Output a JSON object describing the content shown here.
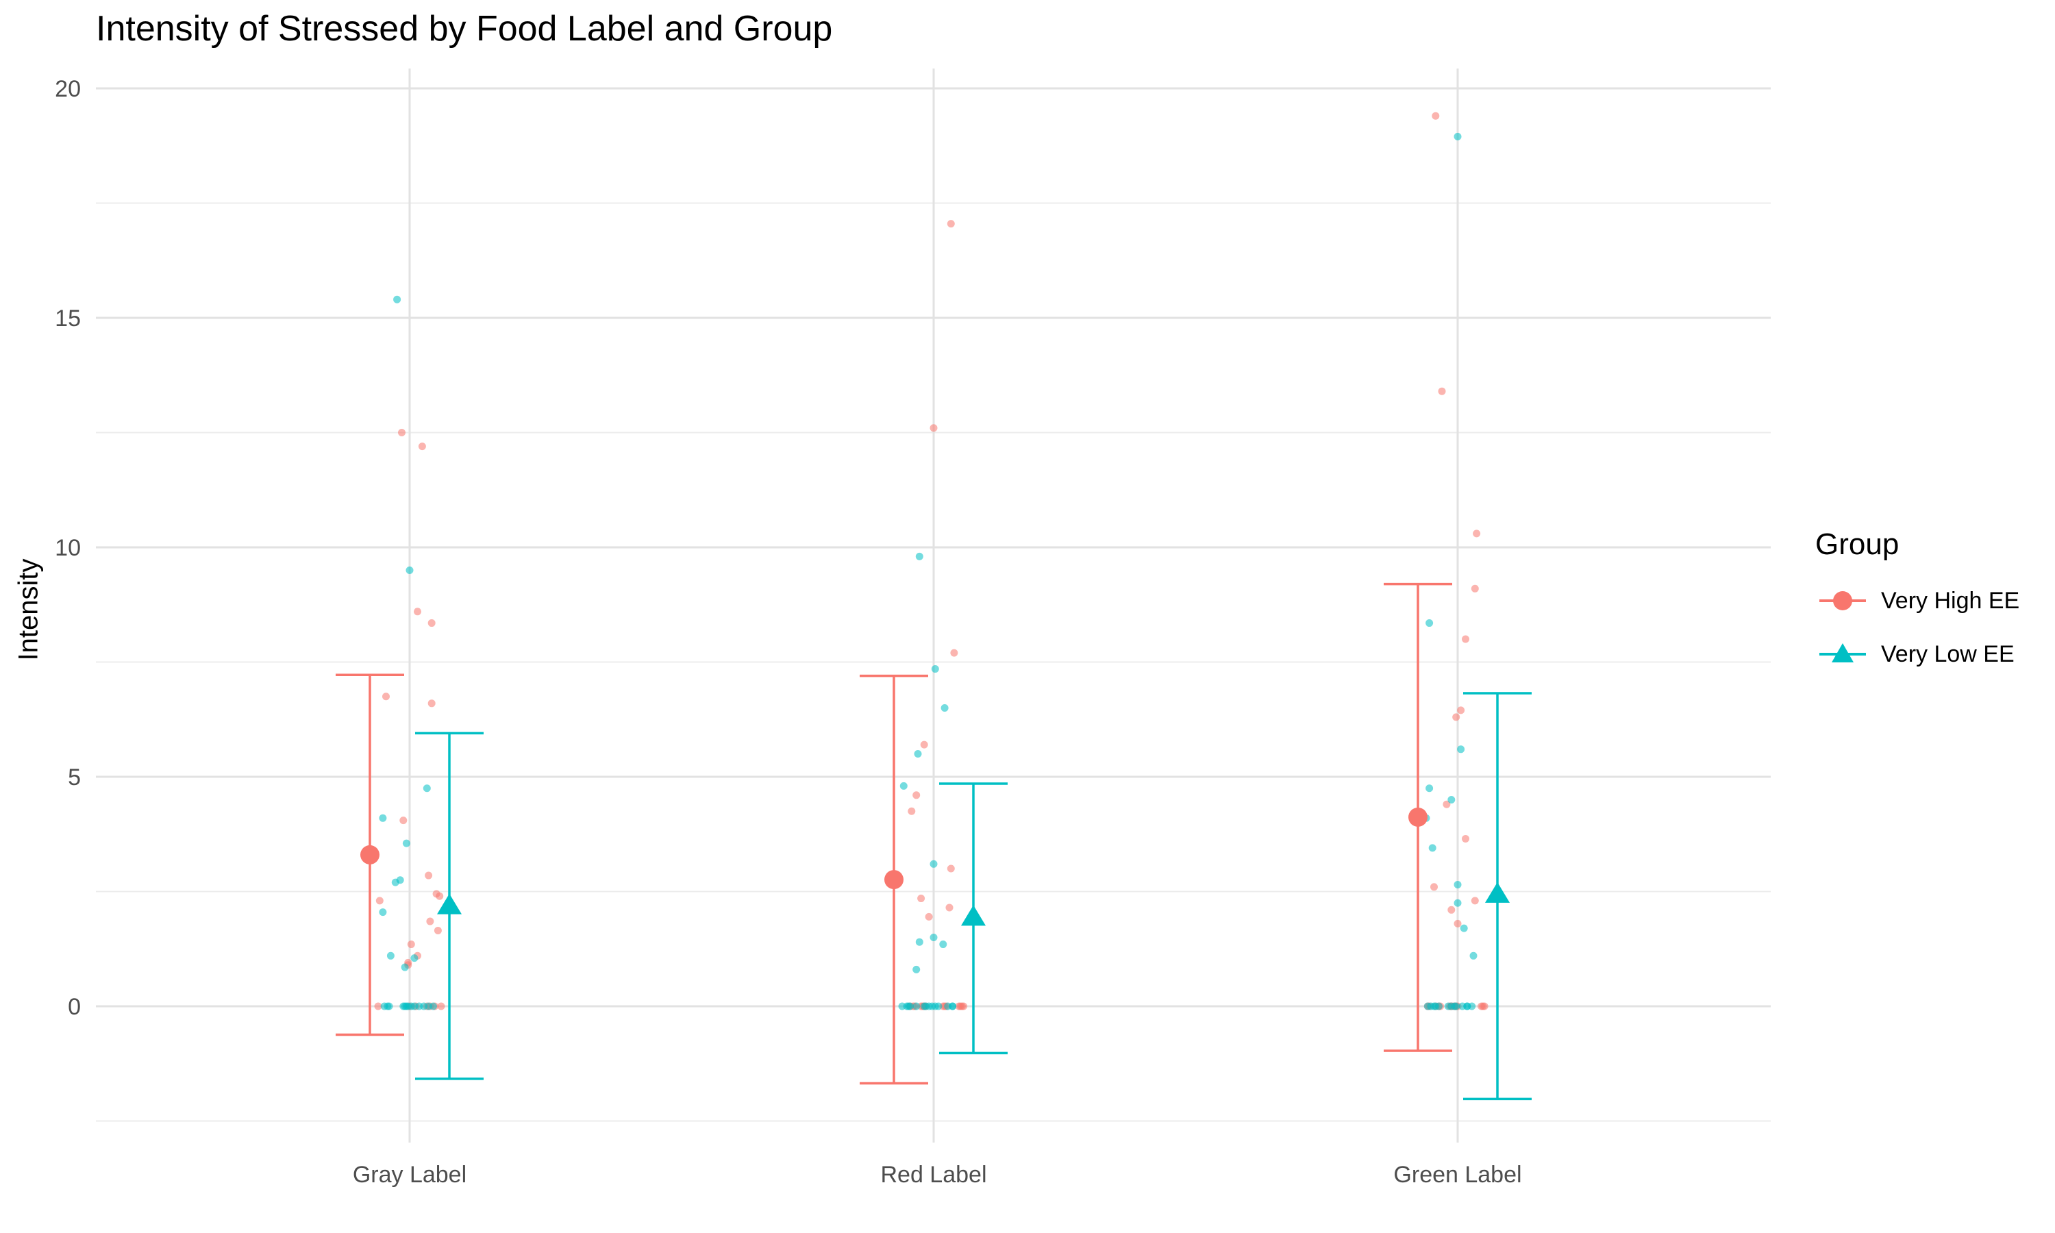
{
  "chart_data": {
    "type": "scatter",
    "title": "Intensity of Stressed by Food Label and Group",
    "xlabel": "",
    "ylabel": "Intensity",
    "categories": [
      "Gray Label",
      "Red Label",
      "Green Label"
    ],
    "ylim": [
      -2.5,
      20.5
    ],
    "yticks": [
      0,
      5,
      10,
      15,
      20
    ],
    "grid": true,
    "legend": {
      "title": "Group",
      "position": "right"
    },
    "series": [
      {
        "name": "Very High EE",
        "color": "#F8766D",
        "marker": "circle",
        "means": [
          3.3,
          2.76,
          4.12
        ],
        "error_low": [
          -0.62,
          -1.68,
          -0.97
        ],
        "error_high": [
          7.22,
          7.2,
          9.2
        ],
        "points": [
          [
            [
              -0.2,
              0
            ],
            [
              -0.19,
              2.3
            ],
            [
              -0.15,
              6.75
            ],
            [
              -0.05,
              12.5
            ],
            [
              -0.04,
              4.05
            ],
            [
              -0.01,
              0.95
            ],
            [
              -0.01,
              0.9
            ],
            [
              0.0,
              0
            ],
            [
              0.01,
              1.35
            ],
            [
              0.04,
              0
            ],
            [
              0.05,
              1.1
            ],
            [
              0.05,
              8.6
            ],
            [
              0.08,
              12.2
            ],
            [
              0.11,
              0
            ],
            [
              0.12,
              2.85
            ],
            [
              0.13,
              0
            ],
            [
              0.13,
              1.85
            ],
            [
              0.14,
              8.35
            ],
            [
              0.14,
              6.6
            ],
            [
              0.16,
              0
            ],
            [
              0.17,
              2.45
            ],
            [
              0.18,
              1.65
            ],
            [
              0.19,
              2.4
            ],
            [
              0.2,
              0
            ]
          ],
          [
            [
              -0.15,
              0
            ],
            [
              -0.14,
              4.25
            ],
            [
              -0.13,
              0
            ],
            [
              -0.12,
              0
            ],
            [
              -0.11,
              4.6
            ],
            [
              -0.08,
              2.35
            ],
            [
              -0.08,
              0
            ],
            [
              -0.07,
              0
            ],
            [
              -0.06,
              0
            ],
            [
              -0.05,
              0
            ],
            [
              -0.06,
              5.7
            ],
            [
              0.0,
              12.6
            ],
            [
              -0.03,
              1.95
            ],
            [
              0.06,
              0
            ],
            [
              0.07,
              0
            ],
            [
              0.08,
              0
            ],
            [
              0.1,
              2.15
            ],
            [
              0.11,
              17.05
            ],
            [
              0.11,
              3.0
            ],
            [
              0.13,
              7.7
            ],
            [
              0.16,
              0
            ],
            [
              0.17,
              0
            ],
            [
              0.18,
              0
            ],
            [
              0.19,
              0
            ]
          ],
          [
            [
              -0.19,
              0
            ],
            [
              -0.18,
              0
            ],
            [
              -0.15,
              2.6
            ],
            [
              -0.14,
              0
            ],
            [
              -0.14,
              19.4
            ],
            [
              -0.12,
              0
            ],
            [
              -0.11,
              0
            ],
            [
              -0.1,
              13.4
            ],
            [
              -0.07,
              4.4
            ],
            [
              -0.05,
              0
            ],
            [
              -0.04,
              0
            ],
            [
              -0.04,
              0
            ],
            [
              -0.04,
              2.1
            ],
            [
              -0.02,
              0
            ],
            [
              -0.02,
              0
            ],
            [
              -0.01,
              0
            ],
            [
              0.0,
              0
            ],
            [
              -0.01,
              6.3
            ],
            [
              0.0,
              1.8
            ],
            [
              0.02,
              6.45
            ],
            [
              0.05,
              3.65
            ],
            [
              0.05,
              8.0
            ],
            [
              0.11,
              9.1
            ],
            [
              0.12,
              10.3
            ],
            [
              0.11,
              2.3
            ],
            [
              0.15,
              0
            ],
            [
              0.16,
              0
            ],
            [
              0.17,
              0
            ]
          ]
        ]
      },
      {
        "name": "Very Low EE",
        "color": "#00BFC4",
        "marker": "triangle",
        "means": [
          2.2,
          1.95,
          2.45
        ],
        "error_low": [
          -1.58,
          -1.02,
          -2.02
        ],
        "error_high": [
          5.95,
          4.85,
          6.82
        ],
        "points": [
          [
            [
              -0.17,
              2.05
            ],
            [
              -0.17,
              4.1
            ],
            [
              -0.16,
              0
            ],
            [
              -0.14,
              0
            ],
            [
              -0.13,
              0
            ],
            [
              -0.12,
              1.1
            ],
            [
              -0.09,
              2.7
            ],
            [
              -0.06,
              2.75
            ],
            [
              -0.04,
              0
            ],
            [
              -0.08,
              15.4
            ],
            [
              -0.03,
              0.85
            ],
            [
              -0.02,
              0
            ],
            [
              -0.02,
              3.55
            ],
            [
              -0.03,
              0
            ],
            [
              -0.01,
              0
            ],
            [
              0.0,
              9.5
            ],
            [
              0.01,
              0
            ],
            [
              0.03,
              0
            ],
            [
              0.03,
              1.05
            ],
            [
              0.06,
              0
            ],
            [
              0.09,
              0
            ],
            [
              0.11,
              4.75
            ],
            [
              0.12,
              0
            ],
            [
              0.15,
              0
            ]
          ],
          [
            [
              -0.2,
              0
            ],
            [
              -0.19,
              4.8
            ],
            [
              -0.17,
              0
            ],
            [
              -0.16,
              0
            ],
            [
              -0.15,
              0
            ],
            [
              -0.11,
              0
            ],
            [
              -0.11,
              0.8
            ],
            [
              -0.1,
              5.5
            ],
            [
              -0.09,
              9.8
            ],
            [
              -0.09,
              1.4
            ],
            [
              -0.06,
              0
            ],
            [
              -0.05,
              0
            ],
            [
              -0.03,
              0
            ],
            [
              -0.01,
              0
            ],
            [
              0.0,
              3.1
            ],
            [
              0.0,
              1.5
            ],
            [
              0.01,
              0
            ],
            [
              0.01,
              7.35
            ],
            [
              0.03,
              0
            ],
            [
              0.06,
              1.35
            ],
            [
              0.07,
              6.5
            ],
            [
              0.09,
              0
            ],
            [
              0.12,
              0
            ],
            [
              0.12,
              0
            ]
          ],
          [
            [
              -0.2,
              4.1
            ],
            [
              -0.19,
              0
            ],
            [
              -0.18,
              8.35
            ],
            [
              -0.18,
              4.75
            ],
            [
              -0.17,
              0
            ],
            [
              -0.16,
              3.45
            ],
            [
              -0.15,
              0
            ],
            [
              -0.14,
              0
            ],
            [
              -0.12,
              0
            ],
            [
              0.0,
              18.95
            ],
            [
              -0.06,
              0
            ],
            [
              -0.04,
              0
            ],
            [
              -0.04,
              4.5
            ],
            [
              -0.02,
              0
            ],
            [
              -0.01,
              0
            ],
            [
              0.0,
              2.25
            ],
            [
              0.0,
              2.65
            ],
            [
              0.02,
              5.6
            ],
            [
              0.03,
              0
            ],
            [
              0.04,
              1.7
            ],
            [
              0.06,
              0
            ],
            [
              0.1,
              1.1
            ],
            [
              0.06,
              0
            ],
            [
              0.09,
              0
            ]
          ]
        ]
      }
    ]
  }
}
